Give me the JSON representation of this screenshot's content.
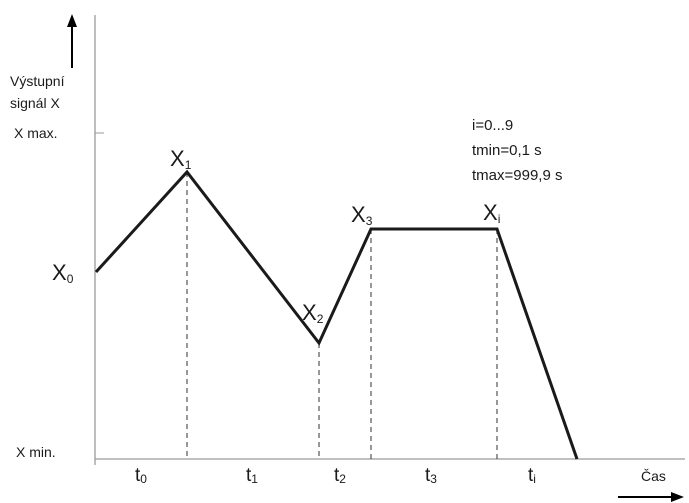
{
  "y_axis": {
    "title_line1": "Výstupní",
    "title_line2": "signál X",
    "max_label": "X max.",
    "min_label": "X min."
  },
  "x_axis": {
    "title": "Čas"
  },
  "points": [
    {
      "base": "X",
      "sub": "0"
    },
    {
      "base": "X",
      "sub": "1"
    },
    {
      "base": "X",
      "sub": "2"
    },
    {
      "base": "X",
      "sub": "3"
    },
    {
      "base": "X",
      "sub": "i"
    }
  ],
  "segments": [
    {
      "base": "t",
      "sub": "0"
    },
    {
      "base": "t",
      "sub": "1"
    },
    {
      "base": "t",
      "sub": "2"
    },
    {
      "base": "t",
      "sub": "3"
    },
    {
      "base": "t",
      "sub": "i"
    }
  ],
  "annotations": {
    "line1": "i=0...9",
    "line2": "tmin=0,1 s",
    "line3": "tmax=999,9 s"
  }
}
